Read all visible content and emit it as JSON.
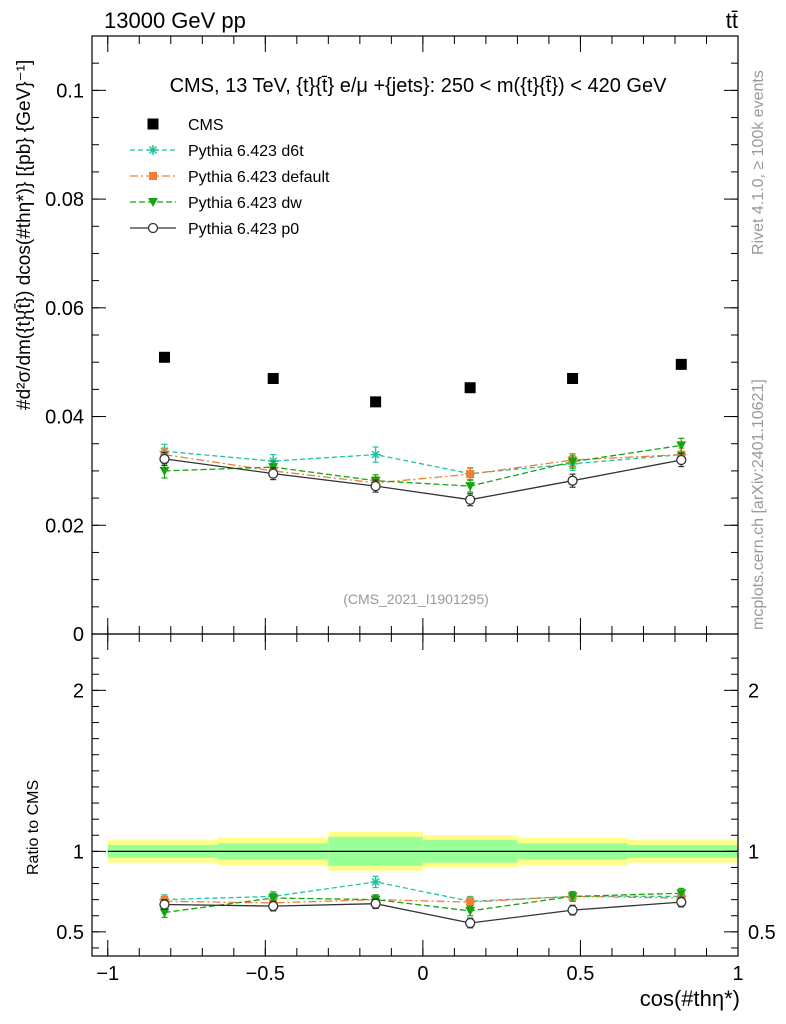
{
  "header": {
    "left": "13000 GeV pp",
    "right": "tt̄"
  },
  "side_labels": {
    "rivet": "Rivet 4.1.0, ≥ 100k events",
    "mcplots": "mcplots.cern.ch [arXiv:2401.10621]"
  },
  "colors": {
    "cms": "#000000",
    "d6t": "#1fc3a0",
    "default": "#f07f32",
    "dw": "#13a512",
    "p0": "#333333",
    "band_inner": "#99ff99",
    "band_outer": "#ffff88"
  },
  "chart_data": [
    {
      "type": "scatter",
      "panel": "main",
      "title": "CMS, 13 TeV, {t}{t̄} e/μ +{jets}: 250 < m({t}{t̄}) < 420 GeV",
      "watermark": "(CMS_2021_I1901295)",
      "ylabel": "#d²σ/dm({t}{t̄}) dcos(#thη*)} [{pb} {GeV}⁻¹]",
      "xlabel": "",
      "xlim": [
        -1.05,
        1.0
      ],
      "ylim": [
        0,
        0.11
      ],
      "yticks": [
        0,
        0.02,
        0.04,
        0.06,
        0.08,
        0.1
      ],
      "ytick_labels": [
        "0",
        "0.02",
        "0.04",
        "0.06",
        "0.08",
        "0.1"
      ],
      "x": [
        -0.82,
        -0.475,
        -0.15,
        0.15,
        0.475,
        0.82
      ],
      "legend_position": "top-left",
      "series": [
        {
          "name": "CMS",
          "key": "cms",
          "style": "data",
          "values": [
            0.0509,
            0.047,
            0.0427,
            0.0453,
            0.047,
            0.0496
          ]
        },
        {
          "name": "Pythia 6.423 d6t",
          "key": "d6t",
          "style": "star",
          "values": [
            0.0336,
            0.0318,
            0.033,
            0.0295,
            0.0313,
            0.033
          ],
          "errors": [
            0.0013,
            0.0012,
            0.0014,
            0.0011,
            0.0012,
            0.0012
          ]
        },
        {
          "name": "Pythia 6.423 default",
          "key": "default",
          "style": "square",
          "values": [
            0.033,
            0.03,
            0.0278,
            0.0294,
            0.032,
            0.033
          ],
          "errors": [
            0.0012,
            0.0011,
            0.0011,
            0.0011,
            0.0012,
            0.0012
          ]
        },
        {
          "name": "Pythia 6.423 dw",
          "key": "dw",
          "style": "triangle",
          "values": [
            0.03,
            0.0307,
            0.0282,
            0.0272,
            0.0317,
            0.0347
          ],
          "errors": [
            0.0013,
            0.0011,
            0.0011,
            0.0011,
            0.0012,
            0.0013
          ]
        },
        {
          "name": "Pythia 6.423 p0",
          "key": "p0",
          "style": "circle",
          "values": [
            0.0322,
            0.0295,
            0.0272,
            0.0247,
            0.0282,
            0.032
          ],
          "errors": [
            0.0012,
            0.0011,
            0.0011,
            0.0011,
            0.0012,
            0.0012
          ]
        }
      ]
    },
    {
      "type": "scatter",
      "panel": "ratio",
      "ylabel": "Ratio to CMS",
      "xlabel": "cos(#thη*)",
      "xlim": [
        -1.05,
        1.0
      ],
      "ylim": [
        0.35,
        2.35
      ],
      "yticks": [
        0.5,
        1,
        2
      ],
      "ytick_labels": [
        "0.5",
        "1",
        "2"
      ],
      "xticks": [
        -1,
        -0.5,
        0,
        0.5,
        1
      ],
      "xtick_labels": [
        "−1",
        "−0.5",
        "0",
        "0.5",
        "1"
      ],
      "bin_edges": [
        -1.0,
        -0.65,
        -0.3,
        0.0,
        0.3,
        0.65,
        1.0
      ],
      "band_inner": [
        0.04,
        0.05,
        0.09,
        0.07,
        0.05,
        0.04
      ],
      "band_outer": [
        0.07,
        0.085,
        0.12,
        0.1,
        0.085,
        0.07
      ],
      "x": [
        -0.82,
        -0.475,
        -0.15,
        0.15,
        0.475,
        0.82
      ],
      "series": [
        {
          "name": "Pythia 6.423 d6t",
          "key": "d6t",
          "style": "star",
          "values": [
            0.7,
            0.72,
            0.81,
            0.69,
            0.72,
            0.72
          ],
          "errors": [
            0.03,
            0.03,
            0.035,
            0.03,
            0.03,
            0.03
          ]
        },
        {
          "name": "Pythia 6.423 default",
          "key": "default",
          "style": "square",
          "values": [
            0.69,
            0.68,
            0.7,
            0.685,
            0.72,
            0.71
          ],
          "errors": [
            0.03,
            0.03,
            0.03,
            0.03,
            0.03,
            0.03
          ]
        },
        {
          "name": "Pythia 6.423 dw",
          "key": "dw",
          "style": "triangle",
          "values": [
            0.62,
            0.71,
            0.7,
            0.63,
            0.72,
            0.74
          ],
          "errors": [
            0.03,
            0.03,
            0.03,
            0.03,
            0.03,
            0.03
          ]
        },
        {
          "name": "Pythia 6.423 p0",
          "key": "p0",
          "style": "circle",
          "values": [
            0.67,
            0.66,
            0.675,
            0.555,
            0.635,
            0.685
          ],
          "errors": [
            0.03,
            0.03,
            0.03,
            0.03,
            0.03,
            0.03
          ]
        }
      ]
    }
  ]
}
